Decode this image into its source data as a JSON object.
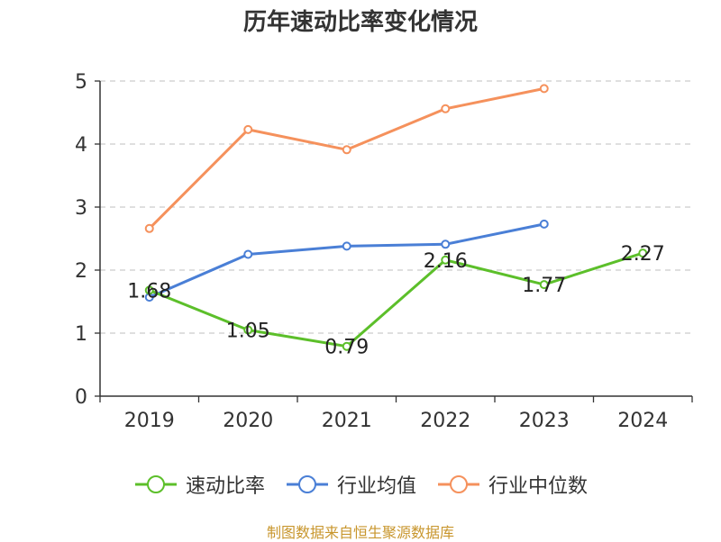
{
  "chart_data": {
    "type": "line",
    "title": "历年速动比率变化情况",
    "categories": [
      "2019",
      "2020",
      "2021",
      "2022",
      "2023",
      "2024"
    ],
    "ylim": [
      0,
      5
    ],
    "yticks": [
      "0",
      "1",
      "2",
      "3",
      "4",
      "5"
    ],
    "grid": "horizontal-dashed",
    "legend_position": "bottom",
    "series": [
      {
        "name": "速动比率",
        "color": "#5cbf2a",
        "values": [
          1.68,
          1.05,
          0.79,
          2.16,
          1.77,
          2.27
        ],
        "labels": [
          "1.68",
          "1.05",
          "0.79",
          "2.16",
          "1.77",
          "2.27"
        ]
      },
      {
        "name": "行业均值",
        "color": "#4a7fd6",
        "values": [
          1.57,
          2.25,
          2.38,
          2.41,
          2.73,
          null
        ]
      },
      {
        "name": "行业中位数",
        "color": "#f5915c",
        "values": [
          2.66,
          4.23,
          3.91,
          4.56,
          4.88,
          null
        ]
      }
    ]
  },
  "footer": {
    "source": "制图数据来自恒生聚源数据库"
  }
}
